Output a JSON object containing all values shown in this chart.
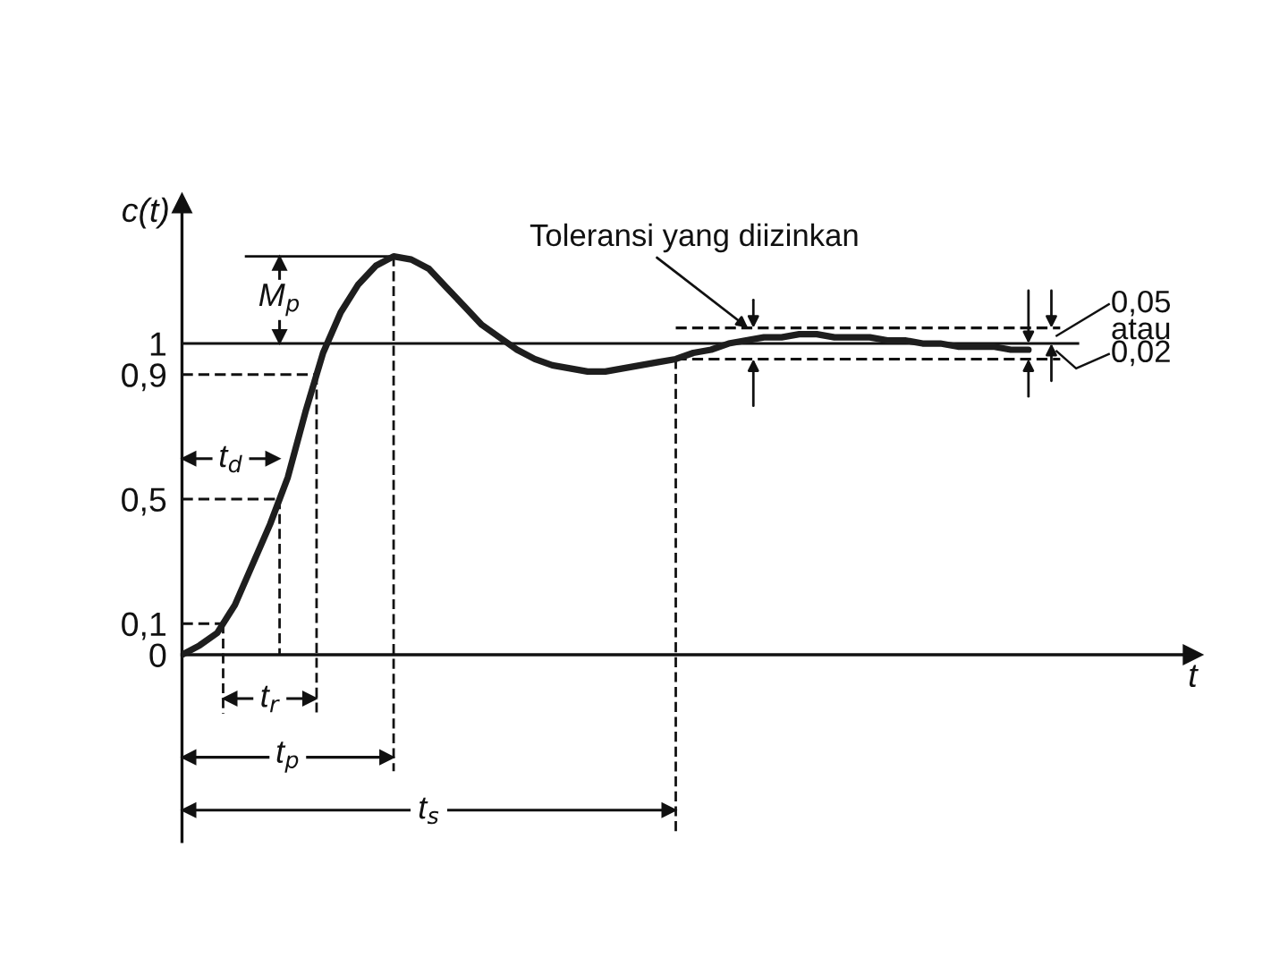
{
  "chart_data": {
    "type": "line",
    "categories": [
      null,
      null,
      null,
      null,
      null,
      null,
      null,
      null,
      null,
      null,
      null,
      null,
      null,
      null,
      null,
      null,
      null,
      null,
      null,
      null,
      null,
      null,
      null,
      null,
      null,
      null,
      null,
      null,
      null,
      null,
      null,
      null,
      null,
      null,
      null,
      null,
      null,
      null,
      null,
      null,
      null,
      null,
      null,
      null,
      null,
      null,
      null,
      null,
      null
    ],
    "values": [
      0,
      0.03,
      0.07,
      0.16,
      0.29,
      0.42,
      0.57,
      0.78,
      0.97,
      1.1,
      1.19,
      1.25,
      1.28,
      1.27,
      1.24,
      1.18,
      1.12,
      1.06,
      1.02,
      0.98,
      0.95,
      0.93,
      0.92,
      0.91,
      0.91,
      0.92,
      0.93,
      0.94,
      0.95,
      0.97,
      0.98,
      1.0,
      1.01,
      1.02,
      1.02,
      1.03,
      1.03,
      1.02,
      1.02,
      1.02,
      1.01,
      1.01,
      1.0,
      1.0,
      0.99,
      0.99,
      0.99,
      0.98,
      0.98
    ],
    "color": "#1e1e1e",
    "xlabel": "t",
    "ylabel": "c(t)",
    "ylim": [
      -0.6,
      1.45
    ],
    "yticks": [
      0,
      {
        "value": 0.1,
        "label": "0,1"
      },
      {
        "value": 0.5,
        "label": "0,5"
      },
      {
        "value": 0.9,
        "label": "0,9"
      },
      1
    ],
    "tick_labels": "y",
    "ref_lines": [
      {
        "axis": "y",
        "value": 1
      },
      {
        "axis": "y",
        "value": 1.05,
        "line_style": "dashed"
      },
      {
        "axis": "y",
        "value": 0.95,
        "line_style": "dashed"
      },
      {
        "axis": "y",
        "value": 0.5,
        "line_style": "dashed"
      },
      {
        "axis": "y",
        "value": 0.9,
        "line_style": "dashed"
      }
    ],
    "annotations": [
      "Toleransi yang diizinkan",
      "M$_{p}$",
      "t$_{d}$",
      "t$_{r}$",
      "t$_{p}$",
      "t$_{s}$",
      "0,05",
      "atau",
      "0,02"
    ]
  }
}
